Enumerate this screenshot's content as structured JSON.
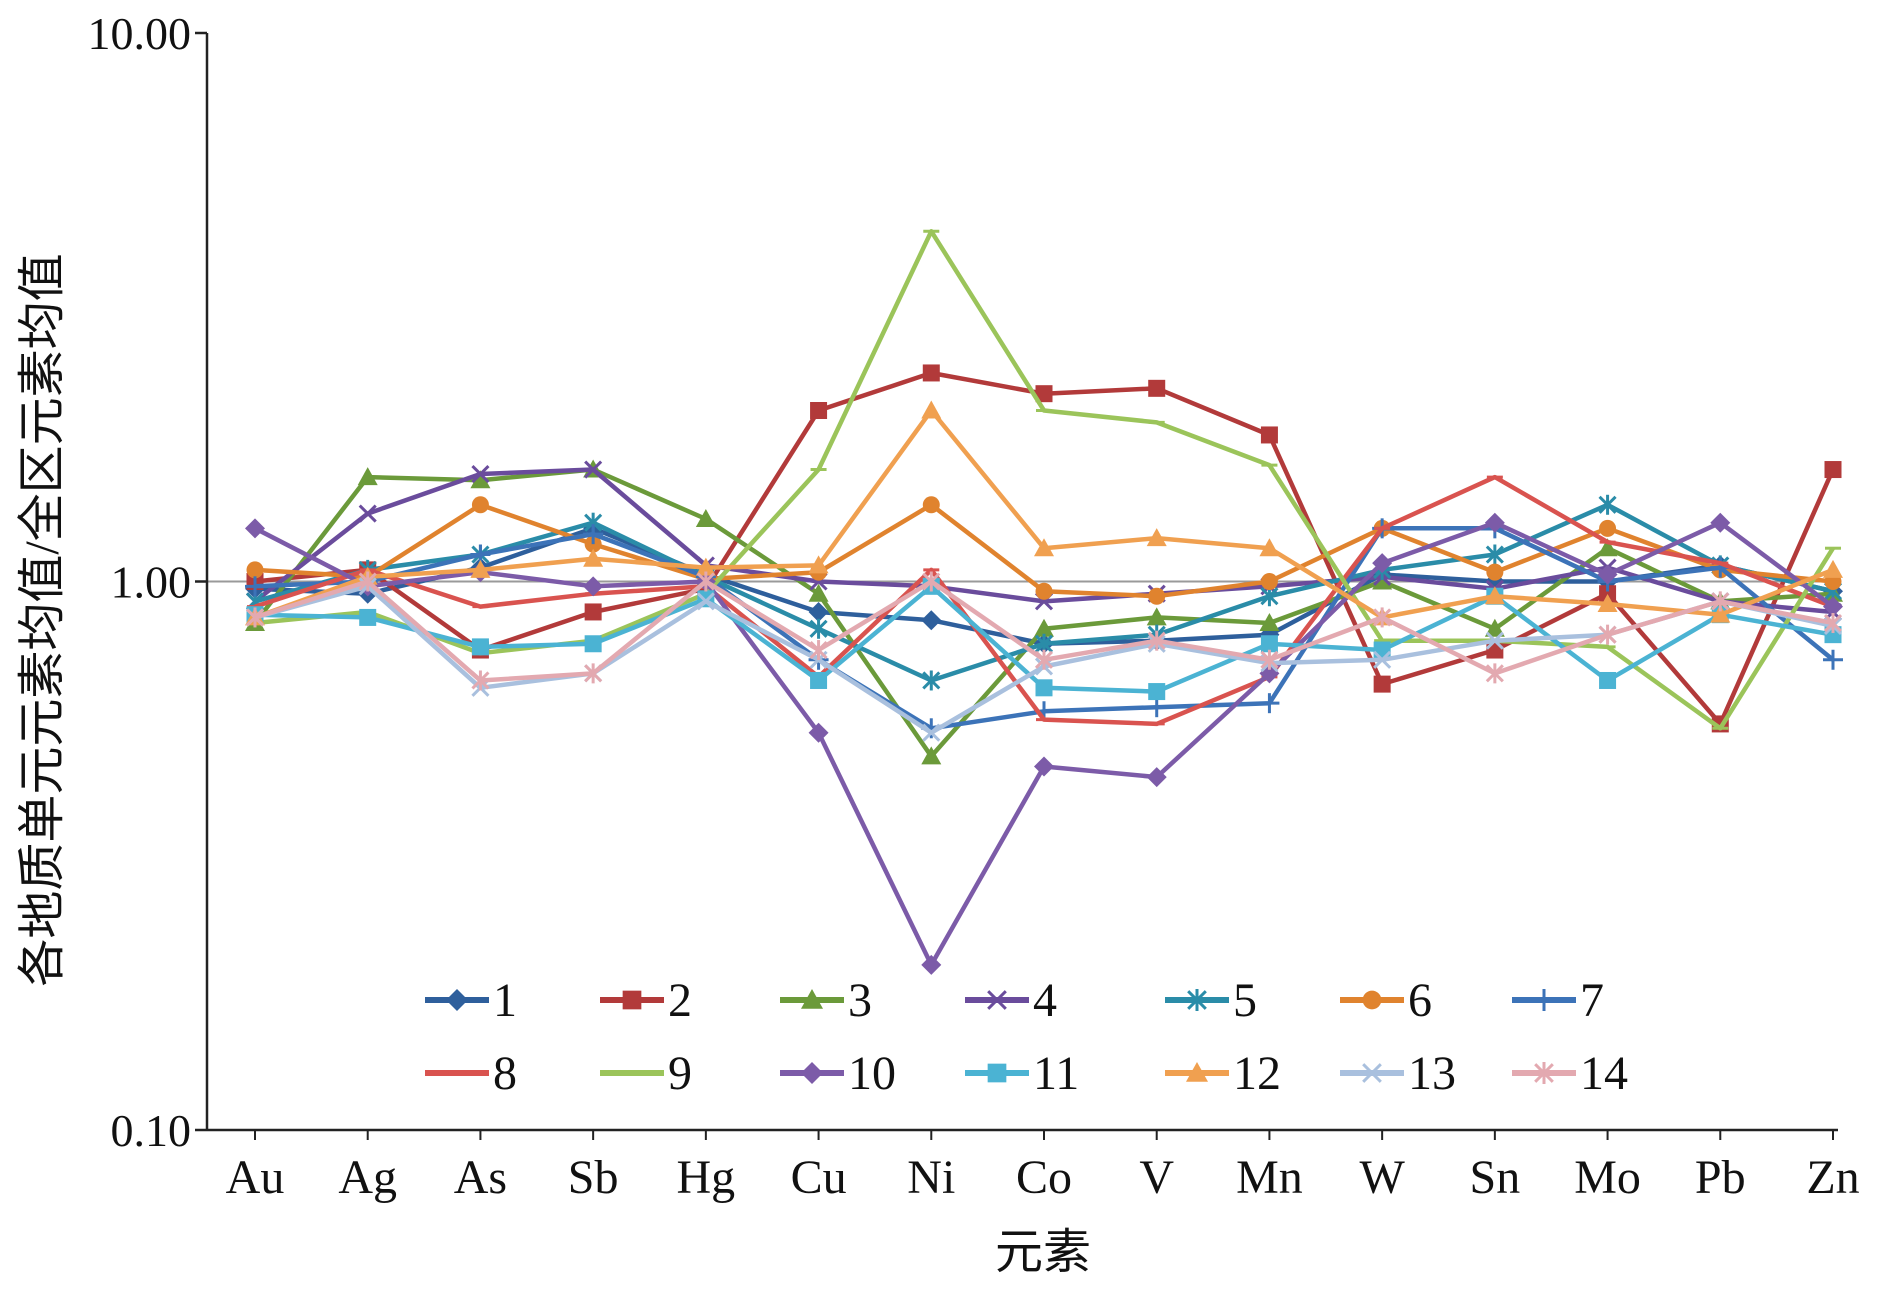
{
  "chart_data": {
    "type": "line",
    "xlabel": "元素",
    "ylabel": "各地质单元元素均值/全区元素均值",
    "y_scale": "log",
    "ylim": [
      0.1,
      10
    ],
    "y_ticks": [
      "0.10",
      "1.00",
      "10.00"
    ],
    "reference_line": 1.0,
    "categories": [
      "Au",
      "Ag",
      "As",
      "Sb",
      "Hg",
      "Cu",
      "Ni",
      "Co",
      "V",
      "Mn",
      "W",
      "Sn",
      "Mo",
      "Pb",
      "Zn"
    ],
    "legend": "bottom-inside, 2 rows",
    "series": [
      {
        "name": "1",
        "color": "#2E5F9C",
        "marker": "diamond",
        "values": [
          0.97,
          0.95,
          1.06,
          1.25,
          1.03,
          0.88,
          0.85,
          0.77,
          0.78,
          0.8,
          1.03,
          1.0,
          1.0,
          1.07,
          0.96
        ]
      },
      {
        "name": "2",
        "color": "#B23A3A",
        "marker": "square",
        "values": [
          1.0,
          1.05,
          0.75,
          0.88,
          0.97,
          2.05,
          2.4,
          2.2,
          2.25,
          1.85,
          0.65,
          0.75,
          0.95,
          0.55,
          1.6
        ]
      },
      {
        "name": "3",
        "color": "#6B9A3A",
        "marker": "triangle",
        "values": [
          0.84,
          1.55,
          1.53,
          1.6,
          1.3,
          0.95,
          0.48,
          0.82,
          0.86,
          0.84,
          1.0,
          0.82,
          1.15,
          0.92,
          0.95
        ]
      },
      {
        "name": "4",
        "color": "#6A4C9C",
        "marker": "x",
        "values": [
          0.92,
          1.33,
          1.57,
          1.6,
          1.07,
          1.0,
          0.98,
          0.92,
          0.95,
          0.98,
          1.02,
          0.97,
          1.06,
          0.92,
          0.88
        ]
      },
      {
        "name": "5",
        "color": "#2A8CA8",
        "marker": "asterisk",
        "values": [
          0.92,
          1.05,
          1.12,
          1.28,
          1.02,
          0.82,
          0.66,
          0.77,
          0.8,
          0.94,
          1.05,
          1.12,
          1.38,
          1.07,
          0.96
        ]
      },
      {
        "name": "6",
        "color": "#E0832E",
        "marker": "circle",
        "values": [
          1.05,
          1.02,
          1.38,
          1.17,
          1.01,
          1.04,
          1.38,
          0.96,
          0.94,
          1.0,
          1.25,
          1.04,
          1.25,
          1.05,
          1.0
        ]
      },
      {
        "name": "7",
        "color": "#3C73B8",
        "marker": "plus",
        "values": [
          0.98,
          1.0,
          1.12,
          1.22,
          1.02,
          0.72,
          0.54,
          0.58,
          0.59,
          0.6,
          1.25,
          1.25,
          1.0,
          1.06,
          0.72
        ]
      },
      {
        "name": "8",
        "color": "#D9534F",
        "marker": "dash",
        "values": [
          0.9,
          1.05,
          0.9,
          0.95,
          0.98,
          0.67,
          1.05,
          0.56,
          0.55,
          0.67,
          1.25,
          1.55,
          1.18,
          1.08,
          0.9
        ]
      },
      {
        "name": "9",
        "color": "#9BC45A",
        "marker": "dash",
        "values": [
          0.84,
          0.88,
          0.74,
          0.78,
          0.95,
          1.6,
          4.35,
          2.05,
          1.95,
          1.63,
          0.78,
          0.78,
          0.76,
          0.54,
          1.15
        ]
      },
      {
        "name": "10",
        "color": "#7C5BA8",
        "marker": "diamond",
        "values": [
          1.25,
          0.98,
          1.04,
          0.98,
          1.0,
          0.53,
          0.2,
          0.46,
          0.44,
          0.68,
          1.08,
          1.28,
          1.03,
          1.28,
          0.9
        ]
      },
      {
        "name": "11",
        "color": "#4BB3D3",
        "marker": "square",
        "values": [
          0.87,
          0.86,
          0.76,
          0.77,
          0.93,
          0.66,
          0.98,
          0.64,
          0.63,
          0.77,
          0.75,
          0.94,
          0.66,
          0.87,
          0.8
        ]
      },
      {
        "name": "12",
        "color": "#F0A050",
        "marker": "triangle",
        "values": [
          0.86,
          1.02,
          1.05,
          1.1,
          1.06,
          1.07,
          2.05,
          1.15,
          1.2,
          1.15,
          0.86,
          0.94,
          0.91,
          0.87,
          1.05
        ]
      },
      {
        "name": "13",
        "color": "#A9C0DE",
        "marker": "x",
        "values": [
          0.86,
          0.98,
          0.64,
          0.68,
          0.92,
          0.72,
          0.53,
          0.7,
          0.77,
          0.71,
          0.72,
          0.78,
          0.8,
          0.92,
          0.83
        ]
      },
      {
        "name": "14",
        "color": "#E3A9B0",
        "marker": "asterisk",
        "values": [
          0.86,
          1.0,
          0.66,
          0.68,
          1.0,
          0.75,
          1.0,
          0.72,
          0.78,
          0.72,
          0.86,
          0.68,
          0.8,
          0.92,
          0.84
        ]
      }
    ]
  }
}
